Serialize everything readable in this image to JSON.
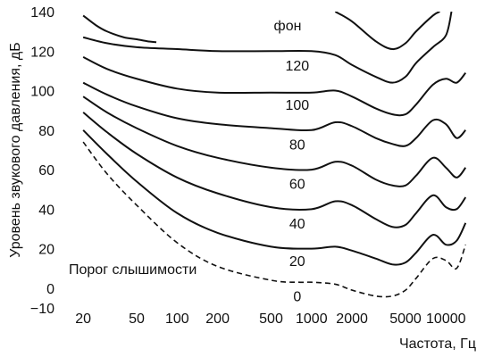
{
  "chart_data": {
    "type": "line",
    "xlabel": "Частота, Гц",
    "ylabel": "Уровень звукового давления, дБ",
    "x_scale": "log",
    "xlim": [
      13,
      16000
    ],
    "ylim": [
      -10,
      140
    ],
    "x_ticks": [
      20,
      50,
      100,
      200,
      500,
      1000,
      2000,
      5000,
      10000
    ],
    "x_tick_labels": [
      "20",
      "50",
      "100",
      "200",
      "500",
      "1000",
      "2000",
      "5000",
      "10000"
    ],
    "y_ticks": [
      -10,
      0,
      20,
      40,
      60,
      80,
      100,
      120,
      140
    ],
    "y_tick_labels": [
      "−10",
      "0",
      "20",
      "40",
      "60",
      "80",
      "100",
      "120",
      "140"
    ],
    "grid": false,
    "unit_label": "фон",
    "annotation": "Порог слышимости",
    "series": [
      {
        "name": "0",
        "style": "dashed",
        "label_at": [
          1000,
          -4
        ],
        "x": [
          20,
          30,
          50,
          100,
          200,
          500,
          800,
          1000,
          1500,
          2000,
          3000,
          4000,
          5000,
          6000,
          8000,
          10000,
          12000,
          14000
        ],
        "y": [
          74,
          58,
          42,
          23,
          11,
          4,
          3,
          3,
          2,
          -1,
          -4,
          -4,
          -1,
          5,
          15,
          14,
          10,
          22
        ]
      },
      {
        "name": "20",
        "style": "solid",
        "label_at": [
          1000,
          14
        ],
        "x": [
          20,
          30,
          50,
          100,
          200,
          500,
          1000,
          1500,
          2000,
          3000,
          4000,
          5000,
          6000,
          8000,
          10000,
          12000,
          14000
        ],
        "y": [
          80,
          68,
          54,
          38,
          28,
          21,
          20,
          21,
          19,
          15,
          12,
          13,
          18,
          27,
          22,
          24,
          33
        ]
      },
      {
        "name": "40",
        "style": "solid",
        "label_at": [
          1000,
          33
        ],
        "x": [
          20,
          30,
          50,
          100,
          200,
          500,
          1000,
          1500,
          2000,
          3000,
          4000,
          5000,
          6000,
          8000,
          10000,
          12000,
          14000
        ],
        "y": [
          89,
          79,
          68,
          56,
          48,
          41,
          40,
          44,
          42,
          35,
          31,
          32,
          38,
          47,
          41,
          40,
          46
        ]
      },
      {
        "name": "60",
        "style": "solid",
        "label_at": [
          1000,
          53
        ],
        "x": [
          20,
          30,
          50,
          100,
          200,
          500,
          1000,
          1500,
          2000,
          3000,
          4000,
          5000,
          6000,
          8000,
          10000,
          12000,
          14000
        ],
        "y": [
          97,
          89,
          81,
          72,
          66,
          61,
          60,
          64,
          62,
          55,
          52,
          52,
          57,
          66,
          61,
          56,
          61
        ]
      },
      {
        "name": "80",
        "style": "solid",
        "label_at": [
          1000,
          73
        ],
        "x": [
          20,
          30,
          50,
          100,
          200,
          500,
          1000,
          1500,
          2000,
          3000,
          4000,
          5000,
          6000,
          8000,
          10000,
          12000,
          14000
        ],
        "y": [
          104,
          98,
          92,
          86,
          83,
          81,
          80,
          84,
          82,
          76,
          73,
          72,
          76,
          85,
          83,
          76,
          80
        ]
      },
      {
        "name": "100",
        "style": "solid",
        "label_at": [
          1000,
          93
        ],
        "x": [
          20,
          30,
          50,
          100,
          200,
          500,
          1000,
          1500,
          2000,
          3000,
          4000,
          5000,
          6000,
          8000,
          10000,
          12000,
          14000
        ],
        "y": [
          117,
          111,
          106,
          101,
          99,
          99,
          99,
          100,
          97,
          91,
          88,
          88,
          93,
          103,
          106,
          104,
          109
        ]
      },
      {
        "name": "120",
        "style": "solid",
        "label_at": [
          1000,
          113
        ],
        "x": [
          20,
          30,
          50,
          100,
          200,
          500,
          1000,
          1500,
          2000,
          3000,
          4000,
          5000,
          6000,
          8000,
          10000,
          11000
        ],
        "y": [
          127,
          124,
          122,
          121,
          120,
          120,
          120,
          118,
          113,
          107,
          104,
          107,
          114,
          122,
          128,
          140
        ]
      },
      {
        "name": "",
        "style": "solid",
        "x": [
          20,
          25,
          30,
          40,
          50,
          60,
          70
        ],
        "y": [
          138,
          133,
          130,
          127,
          126,
          125,
          124.5
        ]
      },
      {
        "name": "",
        "style": "solid",
        "x": [
          1500,
          2000,
          3000,
          4000,
          5000,
          6000,
          8000,
          9000
        ],
        "y": [
          140,
          135,
          125,
          121,
          124,
          130,
          138,
          140
        ]
      }
    ]
  }
}
